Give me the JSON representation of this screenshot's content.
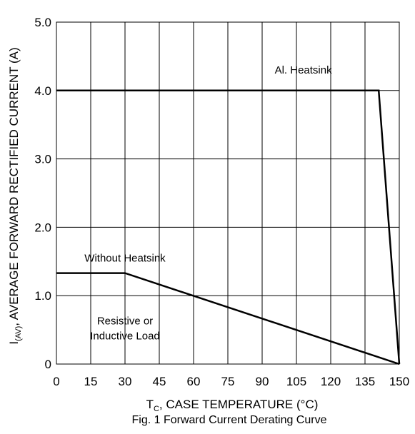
{
  "chart_data": {
    "type": "line",
    "title": "Fig. 1 Forward Current Derating Curve",
    "xlabel": {
      "main": "T",
      "sub": "C",
      "rest": ", CASE TEMPERATURE (°C)"
    },
    "ylabel": {
      "main": "I",
      "sub": "(AV)",
      "rest": ", AVERAGE FORWARD RECTIFIED CURRENT (A)"
    },
    "xlim": [
      0,
      150
    ],
    "ylim": [
      0,
      5.0
    ],
    "x_ticks": [
      {
        "value": 0,
        "label": "0"
      },
      {
        "value": 15,
        "label": "15"
      },
      {
        "value": 30,
        "label": "30"
      },
      {
        "value": 45,
        "label": "45"
      },
      {
        "value": 60,
        "label": "60"
      },
      {
        "value": 75,
        "label": "75"
      },
      {
        "value": 90,
        "label": "90"
      },
      {
        "value": 105,
        "label": "105"
      },
      {
        "value": 120,
        "label": "120"
      },
      {
        "value": 135,
        "label": "135"
      },
      {
        "value": 150,
        "label": "150"
      }
    ],
    "y_ticks": [
      {
        "value": 0,
        "label": "0"
      },
      {
        "value": 1.0,
        "label": "1.0"
      },
      {
        "value": 2.0,
        "label": "2.0"
      },
      {
        "value": 3.0,
        "label": "3.0"
      },
      {
        "value": 4.0,
        "label": "4.0"
      },
      {
        "value": 5.0,
        "label": "5.0"
      }
    ],
    "grid": true,
    "series": [
      {
        "name": "Al. Heatsink",
        "x": [
          0,
          141,
          150
        ],
        "y": [
          4.0,
          4.0,
          0
        ]
      },
      {
        "name": "Without Heatsink",
        "x": [
          0,
          30,
          150
        ],
        "y": [
          1.33,
          1.33,
          0
        ]
      }
    ],
    "annotations": [
      {
        "id": "al-heatsink",
        "lines": [
          "Al. Heatsink"
        ],
        "x": 108,
        "y": 4.25
      },
      {
        "id": "without-heatsink",
        "lines": [
          "Without Heatsink"
        ],
        "x": 30,
        "y": 1.5
      },
      {
        "id": "load-note",
        "lines": [
          "Resistive or",
          "Inductive Load"
        ],
        "x": 30,
        "y": 0.58
      }
    ]
  }
}
